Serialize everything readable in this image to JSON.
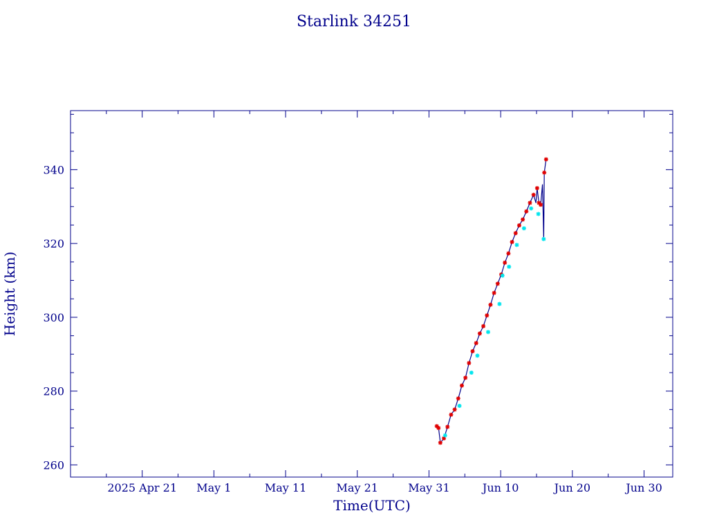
{
  "chart_data": {
    "type": "line",
    "title": "Starlink 34251",
    "xlabel": "Time(UTC)",
    "ylabel": "Height (km)",
    "x_unit": "days",
    "xlim": [
      "2025-04-11",
      "2025-07-04"
    ],
    "ylim": [
      256.7,
      356.0
    ],
    "x_ticks": [
      {
        "date": "2025-04-21",
        "label": "2025 Apr 21"
      },
      {
        "date": "2025-05-01",
        "label": "May  1"
      },
      {
        "date": "2025-05-11",
        "label": "May 11"
      },
      {
        "date": "2025-05-21",
        "label": "May 21"
      },
      {
        "date": "2025-05-31",
        "label": "May 31"
      },
      {
        "date": "2025-06-10",
        "label": "Jun 10"
      },
      {
        "date": "2025-06-20",
        "label": "Jun 20"
      },
      {
        "date": "2025-06-30",
        "label": "Jun 30"
      }
    ],
    "y_ticks": [
      260,
      280,
      300,
      320,
      340
    ],
    "colors": {
      "axis": "#00008B",
      "line": "#00008B",
      "primary_marker": "#E00000",
      "secondary_marker": "#00E5EE"
    },
    "grid": false,
    "legend": "none",
    "series": [
      {
        "marker_color": "#E00000",
        "x": [
          "2025-06-01 02:00",
          "2025-06-01 08:00",
          "2025-06-01 14:00",
          "2025-06-02 02:00",
          "2025-06-02 14:00",
          "2025-06-03 02:00",
          "2025-06-03 14:00",
          "2025-06-04 02:00",
          "2025-06-04 14:00",
          "2025-06-05 02:00",
          "2025-06-05 14:00",
          "2025-06-06 02:00",
          "2025-06-06 14:00",
          "2025-06-07 02:00",
          "2025-06-07 14:00",
          "2025-06-08 02:00",
          "2025-06-08 14:00",
          "2025-06-09 02:00",
          "2025-06-09 14:00",
          "2025-06-10 02:00",
          "2025-06-10 14:00",
          "2025-06-11 02:00",
          "2025-06-11 14:00",
          "2025-06-12 02:00",
          "2025-06-12 14:00",
          "2025-06-13 02:00",
          "2025-06-13 14:00",
          "2025-06-14 02:00",
          "2025-06-14 14:00",
          "2025-06-15 02:00",
          "2025-06-15 08:00",
          "2025-06-15 14:00",
          "2025-06-16 02:00",
          "2025-06-16 08:00"
        ],
        "y": [
          270.5,
          270.0,
          266.0,
          267.2,
          270.3,
          273.6,
          275.0,
          278.0,
          281.5,
          283.6,
          287.6,
          290.8,
          293.0,
          295.6,
          297.6,
          300.5,
          303.4,
          306.6,
          309.1,
          311.6,
          314.8,
          317.3,
          320.4,
          322.8,
          324.9,
          326.5,
          328.7,
          331.0,
          333.2,
          335.0,
          331.0,
          330.5,
          339.2,
          342.8
        ]
      },
      {
        "marker_color": "#00E5EE",
        "x": [
          "2025-06-02 06:00",
          "2025-06-04 06:00",
          "2025-06-05 22:00",
          "2025-06-06 18:00",
          "2025-06-08 06:00",
          "2025-06-09 20:00",
          "2025-06-10 06:00",
          "2025-06-11 04:00",
          "2025-06-12 06:00",
          "2025-06-13 06:00",
          "2025-06-14 06:00",
          "2025-06-15 06:00",
          "2025-06-16 00:00"
        ],
        "y": [
          268.0,
          276.0,
          285.0,
          289.6,
          296.0,
          303.6,
          311.3,
          313.7,
          319.6,
          324.1,
          329.5,
          328.0,
          321.2
        ]
      }
    ],
    "line_path": {
      "x": [
        "2025-06-01 02:00",
        "2025-06-01 08:00",
        "2025-06-01 14:00",
        "2025-06-02 02:00",
        "2025-06-02 14:00",
        "2025-06-03 02:00",
        "2025-06-03 14:00",
        "2025-06-04 02:00",
        "2025-06-04 14:00",
        "2025-06-05 02:00",
        "2025-06-05 14:00",
        "2025-06-06 02:00",
        "2025-06-06 14:00",
        "2025-06-07 02:00",
        "2025-06-07 14:00",
        "2025-06-08 02:00",
        "2025-06-08 14:00",
        "2025-06-09 02:00",
        "2025-06-09 14:00",
        "2025-06-10 02:00",
        "2025-06-10 14:00",
        "2025-06-11 02:00",
        "2025-06-11 14:00",
        "2025-06-12 02:00",
        "2025-06-12 14:00",
        "2025-06-13 02:00",
        "2025-06-13 14:00",
        "2025-06-14 02:00",
        "2025-06-14 14:00",
        "2025-06-14 22:00",
        "2025-06-15 02:00",
        "2025-06-15 08:00",
        "2025-06-15 14:00",
        "2025-06-15 20:00",
        "2025-06-16 00:00",
        "2025-06-16 02:00",
        "2025-06-16 08:00"
      ],
      "y": [
        270.5,
        270.0,
        266.0,
        267.2,
        270.3,
        273.6,
        275.0,
        278.0,
        281.5,
        283.6,
        287.6,
        290.8,
        293.0,
        295.6,
        297.6,
        300.5,
        303.4,
        306.6,
        309.1,
        311.6,
        314.8,
        317.3,
        320.4,
        322.8,
        324.9,
        326.5,
        328.7,
        331.0,
        333.2,
        331.0,
        335.0,
        331.0,
        330.5,
        336.0,
        321.2,
        339.2,
        342.8
      ]
    }
  }
}
